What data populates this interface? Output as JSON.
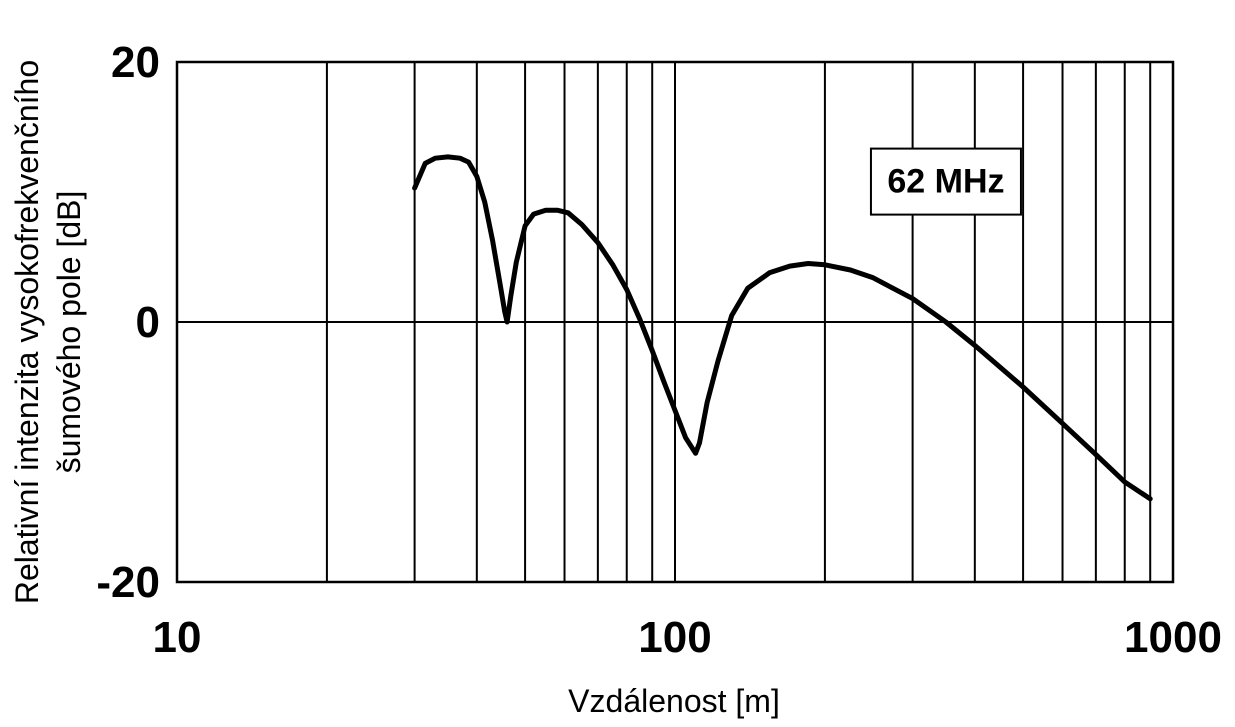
{
  "chart_data": {
    "type": "line",
    "title": "",
    "xlabel": "Vzdálenost [m]",
    "ylabel_lines": [
      "Relativní intenzita vysokofrekvenčního",
      "šumového pole [dB]"
    ],
    "x_scale": "log",
    "xlim": [
      10,
      1000
    ],
    "ylim": [
      -20,
      20
    ],
    "x_ticks": [
      {
        "value": 10,
        "label": "10"
      },
      {
        "value": 100,
        "label": "100"
      },
      {
        "value": 1000,
        "label": "1000"
      }
    ],
    "y_ticks": [
      {
        "value": 20,
        "label": "20"
      },
      {
        "value": 0,
        "label": "0"
      },
      {
        "value": -20,
        "label": "-20"
      }
    ],
    "grid": true,
    "annotation": {
      "text": "62 MHz",
      "x": 350,
      "y": 10.8
    },
    "series": [
      {
        "name": "",
        "x": [
          30,
          31.5,
          33,
          35,
          37,
          38.5,
          40,
          41.5,
          43,
          44.5,
          45.5,
          46,
          46.8,
          48,
          50,
          52,
          55,
          58,
          61,
          65,
          70,
          75,
          80,
          85,
          90,
          95,
          100,
          105,
          110,
          112,
          116,
          122,
          130,
          140,
          155,
          170,
          185,
          200,
          225,
          250,
          300,
          350,
          400,
          500,
          600,
          700,
          800,
          900
        ],
        "y": [
          10.3,
          12.2,
          12.6,
          12.7,
          12.6,
          12.3,
          11.2,
          9.2,
          6.3,
          3.0,
          0.8,
          0.0,
          2.0,
          4.6,
          7.4,
          8.3,
          8.6,
          8.6,
          8.4,
          7.5,
          6.1,
          4.4,
          2.5,
          0.2,
          -2.2,
          -4.6,
          -6.8,
          -8.9,
          -10.1,
          -9.3,
          -6.2,
          -3.0,
          0.5,
          2.6,
          3.8,
          4.3,
          4.5,
          4.4,
          4.0,
          3.4,
          1.8,
          0.0,
          -1.8,
          -5.0,
          -7.8,
          -10.2,
          -12.3,
          -13.6
        ]
      }
    ]
  }
}
